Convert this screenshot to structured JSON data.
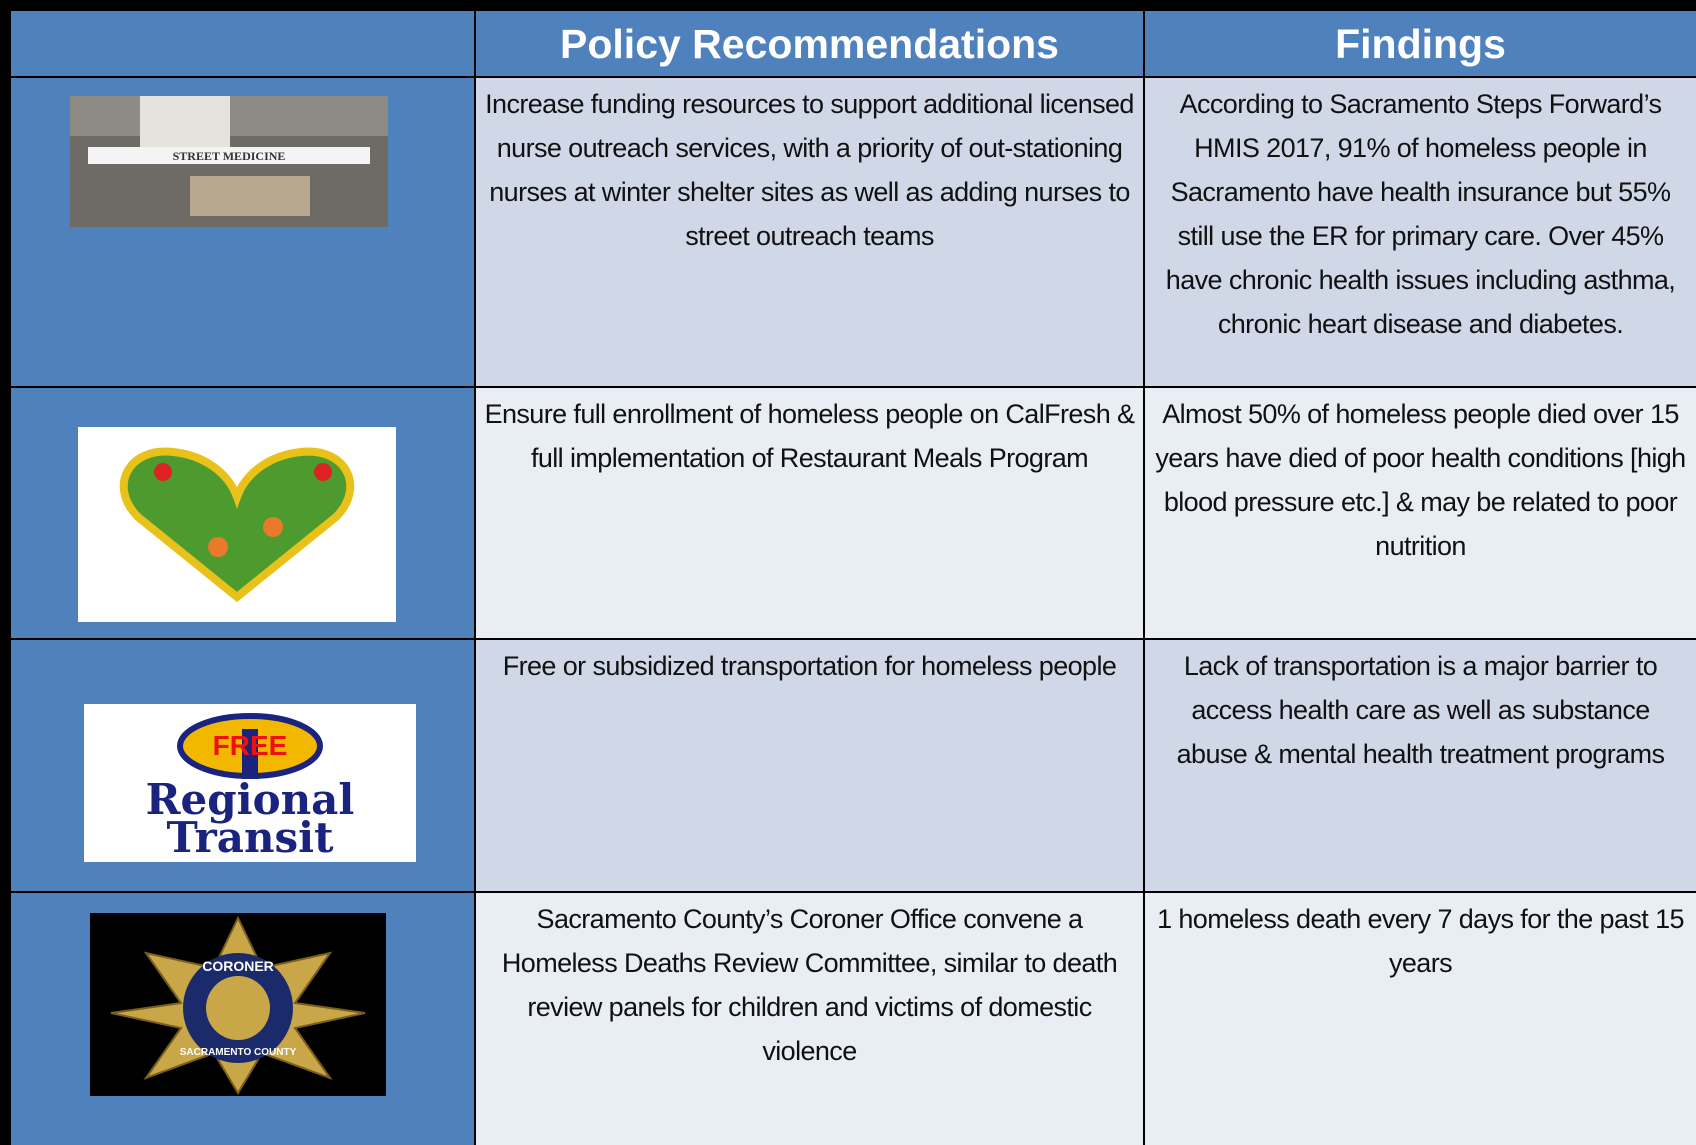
{
  "table": {
    "columns": [
      "Policy Recommendations",
      "Findings"
    ],
    "rows": [
      {
        "image_text": [
          "STREET MEDICINE"
        ],
        "recommendation": "Increase funding resources to support additional licensed nurse outreach services, with a priority of out-stationing nurses at winter shelter sites as well as adding nurses to street outreach teams",
        "finding": "According to Sacramento Steps Forward’s HMIS 2017, 91% of homeless people in Sacramento have health insurance but 55% still use the ER for primary care. Over 45% have chronic health issues including asthma, chronic heart disease and diabetes."
      },
      {
        "recommendation": "Ensure full enrollment of homeless people on CalFresh & full implementation of Restaurant Meals Program",
        "finding": "Almost 50% of homeless people died over 15 years have died of  poor health conditions [high blood pressure etc.] & may be related to poor nutrition"
      },
      {
        "image_text": [
          "FREE",
          "Regional",
          "Transit"
        ],
        "recommendation": "Free or subsidized transportation for homeless people",
        "finding": "Lack of transportation is a major barrier to access health care as well as substance abuse & mental health treatment programs"
      },
      {
        "image_text": [
          "CORONER",
          "SACRAMENTO COUNTY"
        ],
        "recommendation": "Sacramento County’s Coroner Office convene a Homeless Deaths Review Committee, similar to death review panels for children and victims of domestic violence",
        "finding": "1 homeless death every 7 days for the past 15 years"
      }
    ]
  }
}
